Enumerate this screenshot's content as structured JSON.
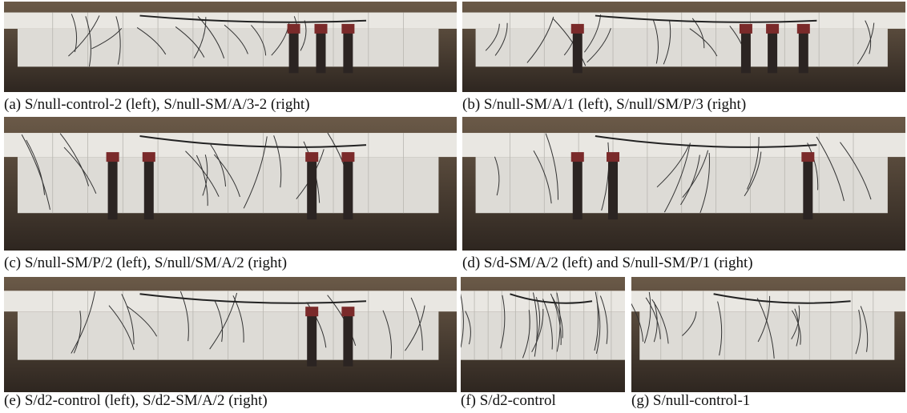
{
  "figure": {
    "panels": [
      {
        "caption": "(a) S/null-control-2 (left), S/null-SM/A/3-2 (right)"
      },
      {
        "caption": "(b) S/null-SM/A/1 (left), S/null/SM/P/3 (right)"
      },
      {
        "caption": "(c) S/null-SM/P/2 (left), S/null/SM/A/2 (right)"
      },
      {
        "caption": "(d) S/d-SM/A/2 (left) and S/null-SM/P/1 (right)"
      },
      {
        "caption": "(e) S/d2-control (left), S/d2-SM/A/2 (right)"
      },
      {
        "caption": "(f) S/d2-control"
      },
      {
        "caption": "(g) S/null-control-1"
      }
    ]
  }
}
